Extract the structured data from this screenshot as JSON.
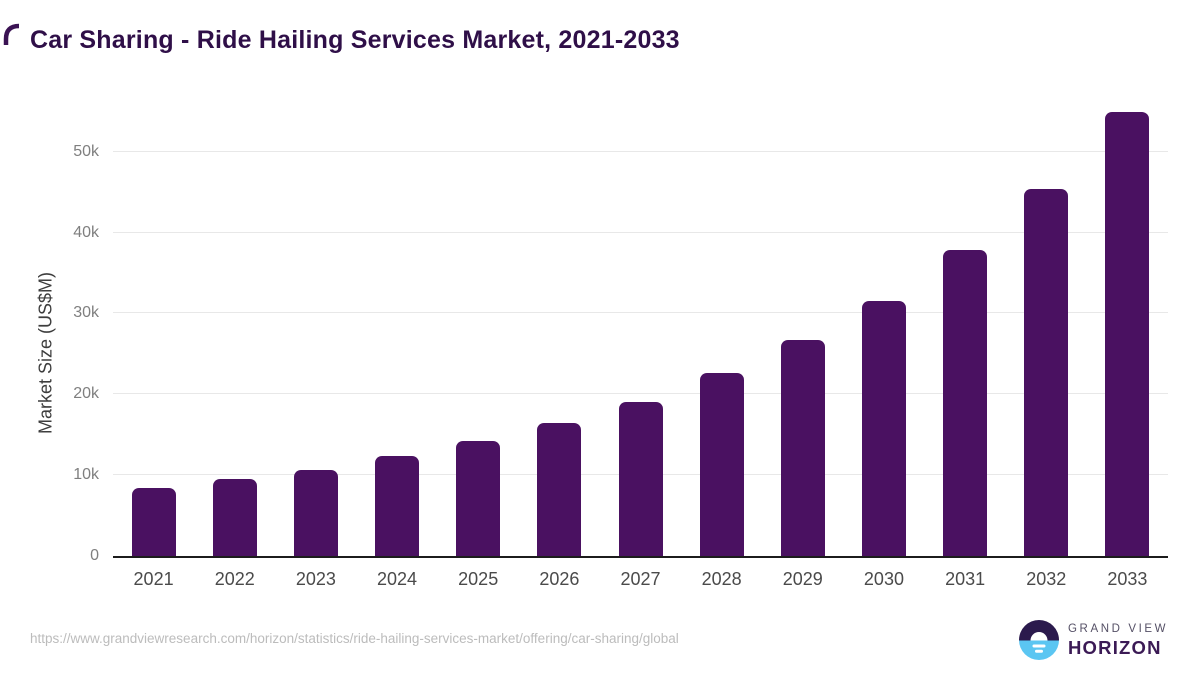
{
  "title": "Car Sharing - Ride Hailing Services Market, 2021-2033",
  "chart_data": {
    "type": "bar",
    "title": "Car Sharing - Ride Hailing Services Market, 2021-2033",
    "categories": [
      "2021",
      "2022",
      "2023",
      "2024",
      "2025",
      "2026",
      "2027",
      "2028",
      "2029",
      "2030",
      "2031",
      "2032",
      "2033"
    ],
    "values": [
      8400,
      9500,
      10700,
      12350,
      14250,
      16500,
      19100,
      22600,
      26700,
      31600,
      37900,
      45400,
      54900
    ],
    "series_name": "Market Size",
    "xlabel": "",
    "ylabel": "Market Size (US$M)",
    "ylim": [
      0,
      56650
    ],
    "yticks": [
      {
        "value": 0,
        "label": "0"
      },
      {
        "value": 10000,
        "label": "10k"
      },
      {
        "value": 20000,
        "label": "20k"
      },
      {
        "value": 30000,
        "label": "30k"
      },
      {
        "value": 40000,
        "label": "40k"
      },
      {
        "value": 50000,
        "label": "50k"
      }
    ],
    "grid": true,
    "legend": false,
    "bar_color": "#4a1161"
  },
  "colors": {
    "title": "#2f0f48",
    "bar": "#4a1161",
    "gridline": "#e8e8e8",
    "axis_line": "#1c1c1c",
    "logo_dark": "#2b1a4d",
    "logo_blue": "#5bc6f2"
  },
  "footer": {
    "source_url": "https://www.grandviewresearch.com/horizon/statistics/ride-hailing-services-market/offering/car-sharing/global",
    "logo": {
      "line1": "GRAND VIEW",
      "line2": "HORIZON"
    }
  }
}
